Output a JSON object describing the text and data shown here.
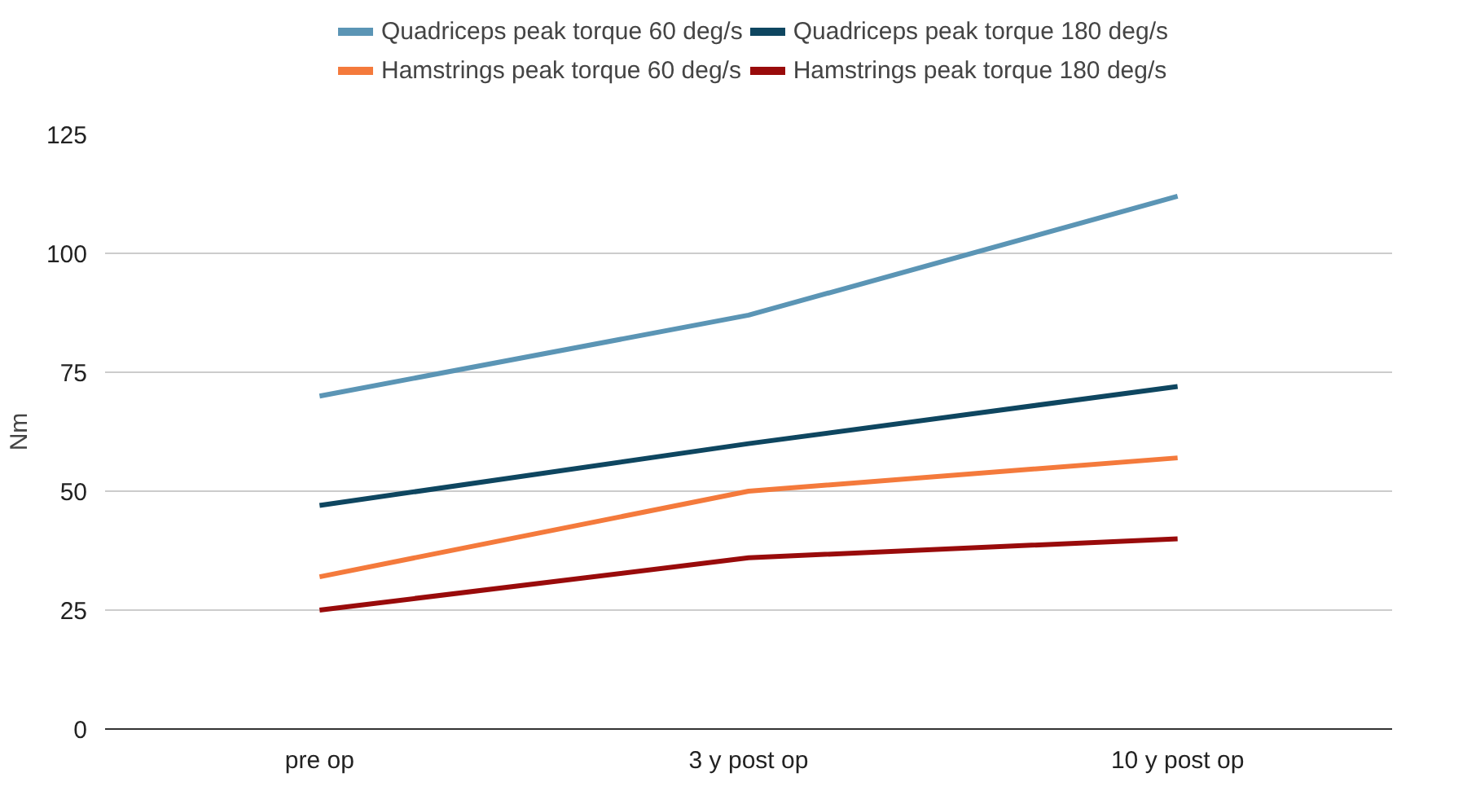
{
  "chart_data": {
    "type": "line",
    "ylabel": "Nm",
    "categories": [
      "pre op",
      "3 y post op",
      "10 y post op"
    ],
    "series": [
      {
        "name": "Quadriceps peak torque 60 deg/s",
        "color": "#5b95b5",
        "values": [
          70,
          87,
          112
        ]
      },
      {
        "name": "Quadriceps peak torque 180 deg/s",
        "color": "#0e4660",
        "values": [
          47,
          60,
          72
        ]
      },
      {
        "name": "Hamstrings peak torque 60 deg/s",
        "color": "#f47a3c",
        "values": [
          32,
          50,
          57
        ]
      },
      {
        "name": "Hamstrings peak torque 180 deg/s",
        "color": "#990b0b",
        "values": [
          25,
          36,
          40
        ]
      }
    ],
    "ylim": [
      0,
      125
    ],
    "yticks": [
      0,
      25,
      50,
      75,
      100,
      125
    ],
    "grid": "y",
    "legend": "top",
    "marker": "none",
    "line_style": "solid"
  }
}
